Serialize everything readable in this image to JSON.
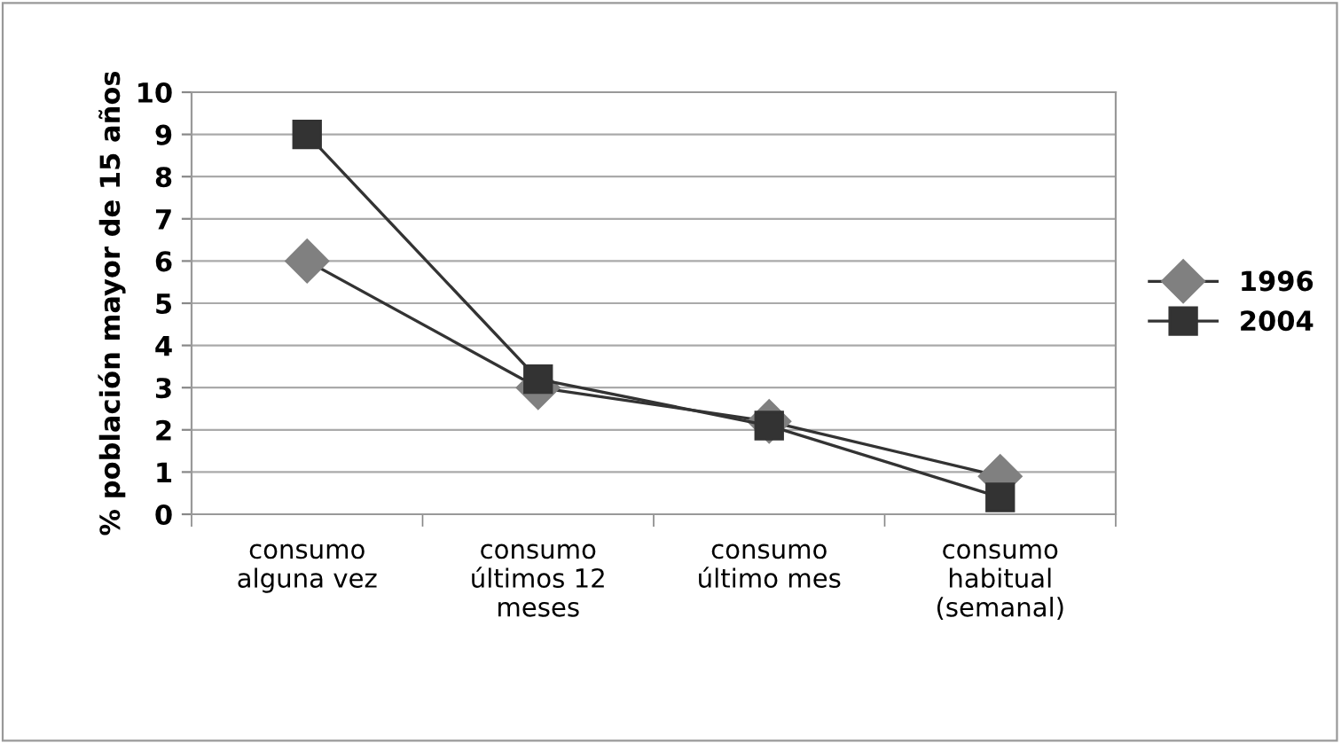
{
  "chart_data": {
    "type": "line",
    "ylabel": "% población mayor de 15 años",
    "categories": [
      "consumo\nalguna vez",
      "consumo\núltimos 12\nmeses",
      "consumo\núltimo mes",
      "consumo\nhabitual\n(semanal)"
    ],
    "series": [
      {
        "name": "1996",
        "color": "#808080",
        "marker": "diamond",
        "values": [
          6,
          3,
          2.2,
          0.9
        ]
      },
      {
        "name": "2004",
        "color": "#333333",
        "marker": "square",
        "values": [
          9,
          3.2,
          2.1,
          0.4
        ]
      }
    ],
    "ylim": [
      0,
      10
    ],
    "yticks": [
      0,
      1,
      2,
      3,
      4,
      5,
      6,
      7,
      8,
      9,
      10
    ],
    "grid": "y",
    "legend": "right",
    "line_style": "solid"
  }
}
